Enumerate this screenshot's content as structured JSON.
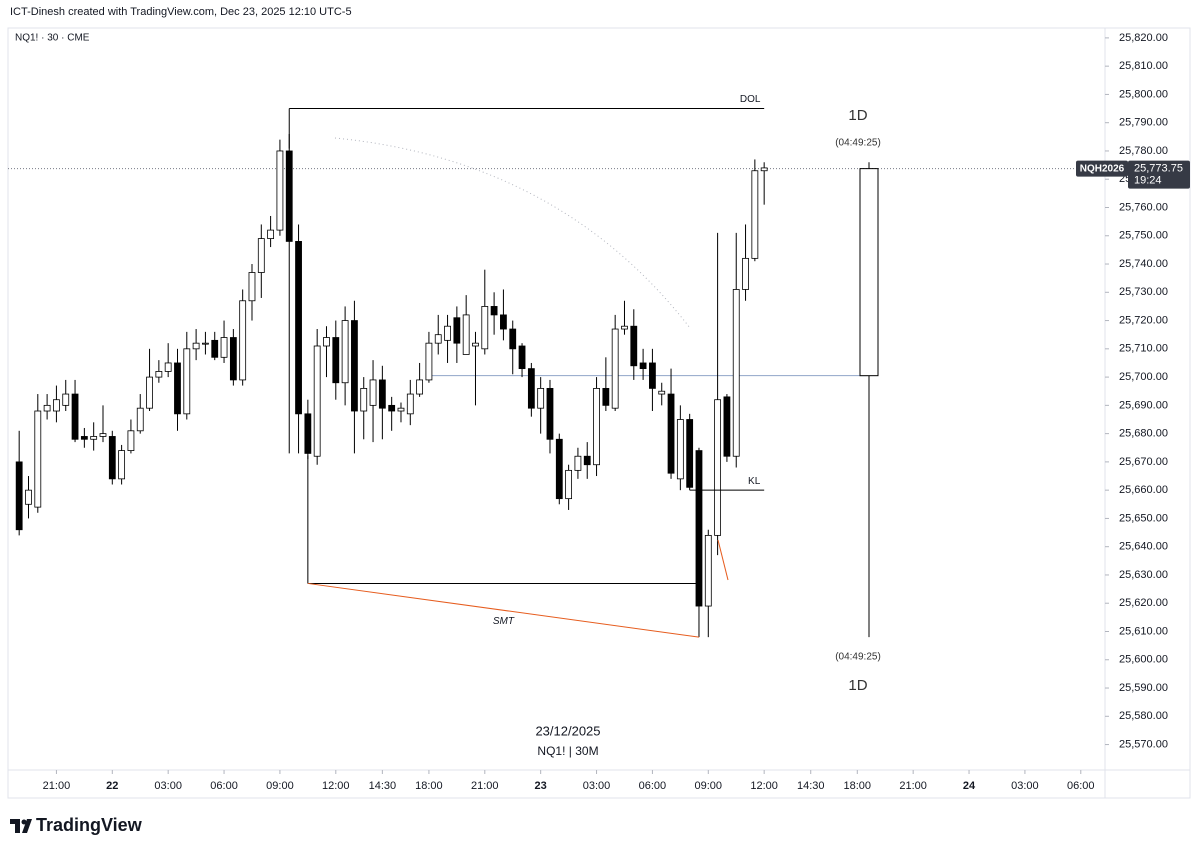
{
  "header": {
    "credit": "ICT-Dinesh created with TradingView.com, Dec 23, 2025 12:10 UTC-5",
    "symbol": "NQ1! · 30 · CME"
  },
  "chart_data": {
    "type": "candlestick",
    "categories": [
      null,
      null,
      null,
      null,
      null,
      null,
      null,
      null,
      null,
      null,
      null,
      null,
      null,
      null,
      null,
      null,
      null,
      null,
      null,
      null,
      null,
      null,
      null,
      null,
      null,
      null,
      null,
      null,
      null,
      null,
      null,
      null,
      null,
      null,
      null,
      null,
      null,
      null,
      null,
      null,
      null,
      null,
      null,
      null,
      null,
      null,
      null,
      null,
      null,
      null,
      null,
      null,
      null,
      null,
      null,
      null,
      null,
      null,
      null,
      null,
      null,
      null,
      null,
      null,
      null,
      null,
      null,
      null,
      null,
      null,
      null,
      null,
      null,
      null,
      null,
      null,
      null,
      null,
      null,
      null,
      null
    ],
    "open": [
      25670,
      25655,
      25654,
      25688,
      25688,
      25690,
      25694,
      25679,
      25678,
      25679,
      25679,
      25664,
      25674,
      25681,
      25689,
      25700,
      25702,
      25705,
      25687,
      25710,
      25712,
      25713,
      25707,
      25714,
      25699,
      25727,
      25737,
      25749,
      25752,
      25780,
      25748,
      25687,
      25672,
      25711,
      25714,
      25698,
      25720,
      25688,
      25690,
      25699,
      25690,
      25688,
      25687,
      25694,
      25699,
      25712,
      25713,
      25721,
      25708,
      25711,
      25710,
      25725,
      25722,
      25717,
      25711,
      25703,
      25689,
      25696,
      25678,
      25657,
      25667,
      25672,
      25669,
      25696,
      25689,
      25717,
      25718,
      25705,
      25705,
      25694,
      25694,
      25664,
      25685,
      25674,
      25619,
      25644,
      25693,
      25672,
      25731,
      25742,
      25773
    ],
    "high": [
      25681,
      25665,
      25694,
      25694,
      25697,
      25699,
      25699,
      25682,
      25684,
      25690,
      25681,
      25676,
      25685,
      25694,
      25710,
      25706,
      25712,
      25710,
      25716,
      25717,
      25716,
      25716,
      25720,
      25717,
      25731,
      25740,
      25754,
      25757,
      25784,
      25786,
      25754,
      25692,
      25717,
      25718,
      25720,
      25725,
      25727,
      25700,
      25706,
      25704,
      25693,
      25691,
      25699,
      25705,
      25716,
      25722,
      25722,
      25725,
      25729,
      25716,
      25738,
      25730,
      25731,
      25720,
      25712,
      25705,
      25700,
      25699,
      25680,
      25669,
      25675,
      25677,
      25700,
      25707,
      25722,
      25727,
      25724,
      25710,
      25710,
      25698,
      25703,
      25690,
      25687,
      25675,
      25646,
      25751,
      25694,
      25751,
      25754,
      25777,
      25776
    ],
    "low": [
      25644,
      25650,
      25652,
      25685,
      25684,
      25688,
      25677,
      25675,
      25674,
      25677,
      25662,
      25662,
      25673,
      25680,
      25688,
      25698,
      25700,
      25681,
      25685,
      25706,
      25708,
      25706,
      25705,
      25697,
      25697,
      25720,
      25728,
      25746,
      25750,
      25673,
      25673,
      25671,
      25669,
      25700,
      25692,
      25690,
      25673,
      25678,
      25677,
      25678,
      25681,
      25684,
      25683,
      25693,
      25698,
      25708,
      25705,
      25705,
      25708,
      25690,
      25708,
      25715,
      25713,
      25701,
      25700,
      25686,
      25680,
      25673,
      25655,
      25653,
      25664,
      25664,
      25665,
      25688,
      25688,
      25715,
      25699,
      25699,
      25688,
      25690,
      25664,
      25660,
      25660,
      25608,
      25608,
      25637,
      25670,
      25668,
      25727,
      25741,
      25761
    ],
    "close": [
      25646,
      25660,
      25688,
      25690,
      25692,
      25694,
      25678,
      25678,
      25679,
      25680,
      25664,
      25674,
      25681,
      25689,
      25700,
      25702,
      25705,
      25687,
      25710,
      25712,
      25712,
      25707,
      25714,
      25699,
      25727,
      25737,
      25749,
      25752,
      25780,
      25748,
      25687,
      25673,
      25711,
      25714,
      25698,
      25720,
      25688,
      25696,
      25699,
      25689,
      25688,
      25689,
      25694,
      25699,
      25712,
      25715,
      25718,
      25712,
      25722,
      25712,
      25725,
      25722,
      25717,
      25710,
      25703,
      25689,
      25696,
      25678,
      25657,
      25667,
      25672,
      25669,
      25696,
      25690,
      25717,
      25718,
      25704,
      25703,
      25696,
      25695,
      25666,
      25685,
      25661,
      25619,
      25644,
      25692,
      25672,
      25731,
      25742,
      25773,
      25774
    ],
    "up_color": "#ffffff",
    "down_color": "#000000",
    "xlim": [
      -1.2,
      116.6
    ],
    "ylim": [
      25561,
      25823.5
    ],
    "xticks": [
      {
        "value": 4,
        "label": "21:00"
      },
      {
        "value": 10,
        "label": "22"
      },
      {
        "value": 16,
        "label": "03:00"
      },
      {
        "value": 22,
        "label": "06:00"
      },
      {
        "value": 28,
        "label": "09:00"
      },
      {
        "value": 34,
        "label": "12:00"
      },
      {
        "value": 39,
        "label": "14:30"
      },
      {
        "value": 44,
        "label": "18:00"
      },
      {
        "value": 50,
        "label": "21:00"
      },
      {
        "value": 56,
        "label": "23"
      },
      {
        "value": 62,
        "label": "03:00"
      },
      {
        "value": 68,
        "label": "06:00"
      },
      {
        "value": 74,
        "label": "09:00"
      },
      {
        "value": 80,
        "label": "12:00"
      },
      {
        "value": 85,
        "label": "14:30"
      },
      {
        "value": 90,
        "label": "18:00"
      },
      {
        "value": 96,
        "label": "21:00"
      },
      {
        "value": 102,
        "label": "24"
      },
      {
        "value": 108,
        "label": "03:00"
      },
      {
        "value": 114,
        "label": "06:00"
      }
    ],
    "yticks": [
      {
        "value": 25570,
        "label": "25,570.00"
      },
      {
        "value": 25580,
        "label": "25,580.00"
      },
      {
        "value": 25590,
        "label": "25,590.00"
      },
      {
        "value": 25600,
        "label": "25,600.00"
      },
      {
        "value": 25610,
        "label": "25,610.00"
      },
      {
        "value": 25620,
        "label": "25,620.00"
      },
      {
        "value": 25630,
        "label": "25,630.00"
      },
      {
        "value": 25640,
        "label": "25,640.00"
      },
      {
        "value": 25650,
        "label": "25,650.00"
      },
      {
        "value": 25660,
        "label": "25,660.00"
      },
      {
        "value": 25670,
        "label": "25,670.00"
      },
      {
        "value": 25680,
        "label": "25,680.00"
      },
      {
        "value": 25690,
        "label": "25,690.00"
      },
      {
        "value": 25700,
        "label": "25,700.00"
      },
      {
        "value": 25710,
        "label": "25,710.00"
      },
      {
        "value": 25720,
        "label": "25,720.00"
      },
      {
        "value": 25730,
        "label": "25,730.00"
      },
      {
        "value": 25740,
        "label": "25,740.00"
      },
      {
        "value": 25750,
        "label": "25,750.00"
      },
      {
        "value": 25760,
        "label": "25,760.00"
      },
      {
        "value": 25770,
        "label": "25,770.00"
      },
      {
        "value": 25780,
        "label": "25,780.00"
      },
      {
        "value": 25790,
        "label": "25,790.00"
      },
      {
        "value": 25800,
        "label": "25,800.00"
      },
      {
        "value": 25810,
        "label": "25,810.00"
      },
      {
        "value": 25820,
        "label": "25,820.00"
      }
    ],
    "last_price": {
      "symbol": "NQH2026",
      "value": 25773.75,
      "label": "25,773.75",
      "countdown": "19:24"
    },
    "htf_candle": {
      "label": "1D",
      "timer": "(04:49:25)",
      "open": 25700.5,
      "high": 25776,
      "low": 25608,
      "close": 25773.75
    },
    "annotations": {
      "dol": {
        "text": "DOL",
        "price": 25795,
        "start": 29,
        "end": 80
      },
      "kl": {
        "text": "KL",
        "price": 25660,
        "start": 72,
        "end": 80
      },
      "smt": {
        "text": "SMT",
        "price": 25627,
        "start": 31,
        "end": 73,
        "low_price": 25608
      },
      "open_level": {
        "price": 25700.5,
        "start": 44,
        "end": 91
      }
    },
    "watermark": {
      "date": "23/12/2025",
      "symbol": "NQ1! | 30M"
    }
  },
  "footer": {
    "logo": "TradingView"
  }
}
